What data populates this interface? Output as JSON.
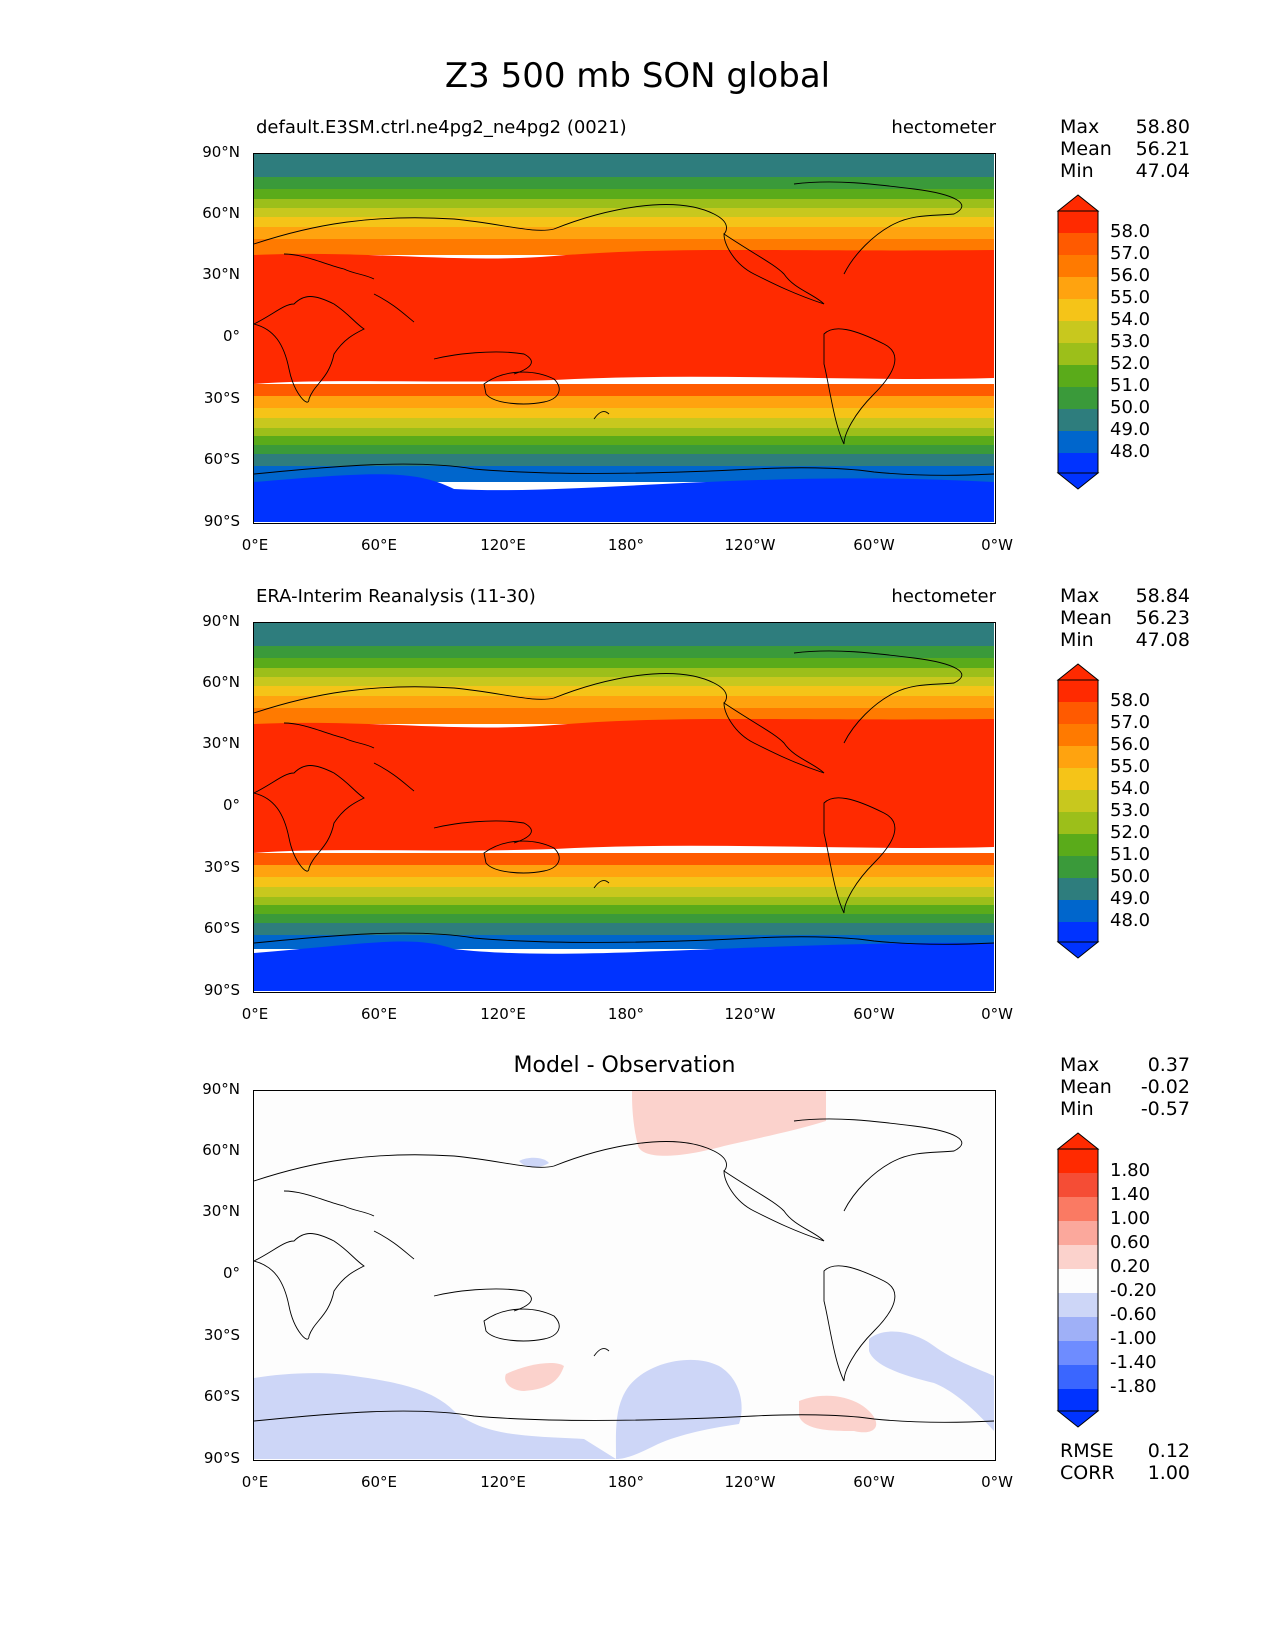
{
  "figure_title": "Z3 500 mb SON global",
  "axes": {
    "lat_ticks": [
      "90°N",
      "60°N",
      "30°N",
      "0°",
      "30°S",
      "60°S",
      "90°S"
    ],
    "lon_ticks": [
      "0°E",
      "60°E",
      "120°E",
      "180°",
      "120°W",
      "60°W",
      "0°W"
    ]
  },
  "panels": [
    {
      "left_title": "default.E3SM.ctrl.ne4pg2_ne4pg2 (0021)",
      "right_title": "hectometer",
      "stats": {
        "max_label": "Max",
        "max": "58.80",
        "mean_label": "Mean",
        "mean": "56.21",
        "min_label": "Min",
        "min": "47.04"
      },
      "colorbar_labels": [
        "58.0",
        "57.0",
        "56.0",
        "55.0",
        "54.0",
        "53.0",
        "52.0",
        "51.0",
        "50.0",
        "49.0",
        "48.0"
      ]
    },
    {
      "left_title": "ERA-Interim Reanalysis (11-30)",
      "right_title": "hectometer",
      "stats": {
        "max_label": "Max",
        "max": "58.84",
        "mean_label": "Mean",
        "mean": "56.23",
        "min_label": "Min",
        "min": "47.08"
      },
      "colorbar_labels": [
        "58.0",
        "57.0",
        "56.0",
        "55.0",
        "54.0",
        "53.0",
        "52.0",
        "51.0",
        "50.0",
        "49.0",
        "48.0"
      ]
    },
    {
      "center_title": "Model - Observation",
      "stats": {
        "max_label": "Max",
        "max": "0.37",
        "mean_label": "Mean",
        "mean": "-0.02",
        "min_label": "Min",
        "min": "-0.57"
      },
      "colorbar_labels": [
        "1.80",
        "1.40",
        "1.00",
        "0.60",
        "0.20",
        "-0.20",
        "-0.60",
        "-1.00",
        "-1.40",
        "-1.80"
      ],
      "metrics": {
        "rmse_label": "RMSE",
        "rmse": "0.12",
        "corr_label": "CORR",
        "corr": "1.00"
      }
    }
  ],
  "colors": {
    "field_levels": [
      "#0033ff",
      "#0066cc",
      "#2e8b8b",
      "#3a9a3a",
      "#5aab1a",
      "#9cbf1a",
      "#c8c81e",
      "#f5c418",
      "#ffa30f",
      "#ff7a00",
      "#ff5a00",
      "#ff2a00"
    ],
    "diff_levels": [
      "#0033ff",
      "#3a66ff",
      "#6e8cff",
      "#9fb0f7",
      "#cdd6f7",
      "#fdfdfd",
      "#fbd2cc",
      "#fba89c",
      "#fa7a63",
      "#f54d35",
      "#ff2a00"
    ]
  }
}
